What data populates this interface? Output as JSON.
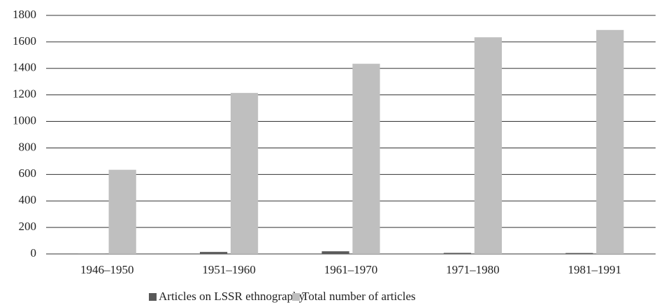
{
  "chart_data": {
    "type": "bar",
    "categories": [
      "1946–1950",
      "1951–1960",
      "1961–1970",
      "1971–1980",
      "1981–1991"
    ],
    "series": [
      {
        "name": "Articles on LSSR ethnography",
        "color": "#595959",
        "values": [
          3,
          15,
          20,
          8,
          7
        ]
      },
      {
        "name": "Total number of articles",
        "color": "#bfbfbf",
        "values": [
          635,
          1215,
          1435,
          1635,
          1690
        ]
      }
    ],
    "ylim": [
      0,
      1800
    ],
    "yticks": [
      0,
      200,
      400,
      600,
      800,
      1000,
      1200,
      1400,
      1600,
      1800
    ],
    "grid": true,
    "legend": "bottom"
  }
}
